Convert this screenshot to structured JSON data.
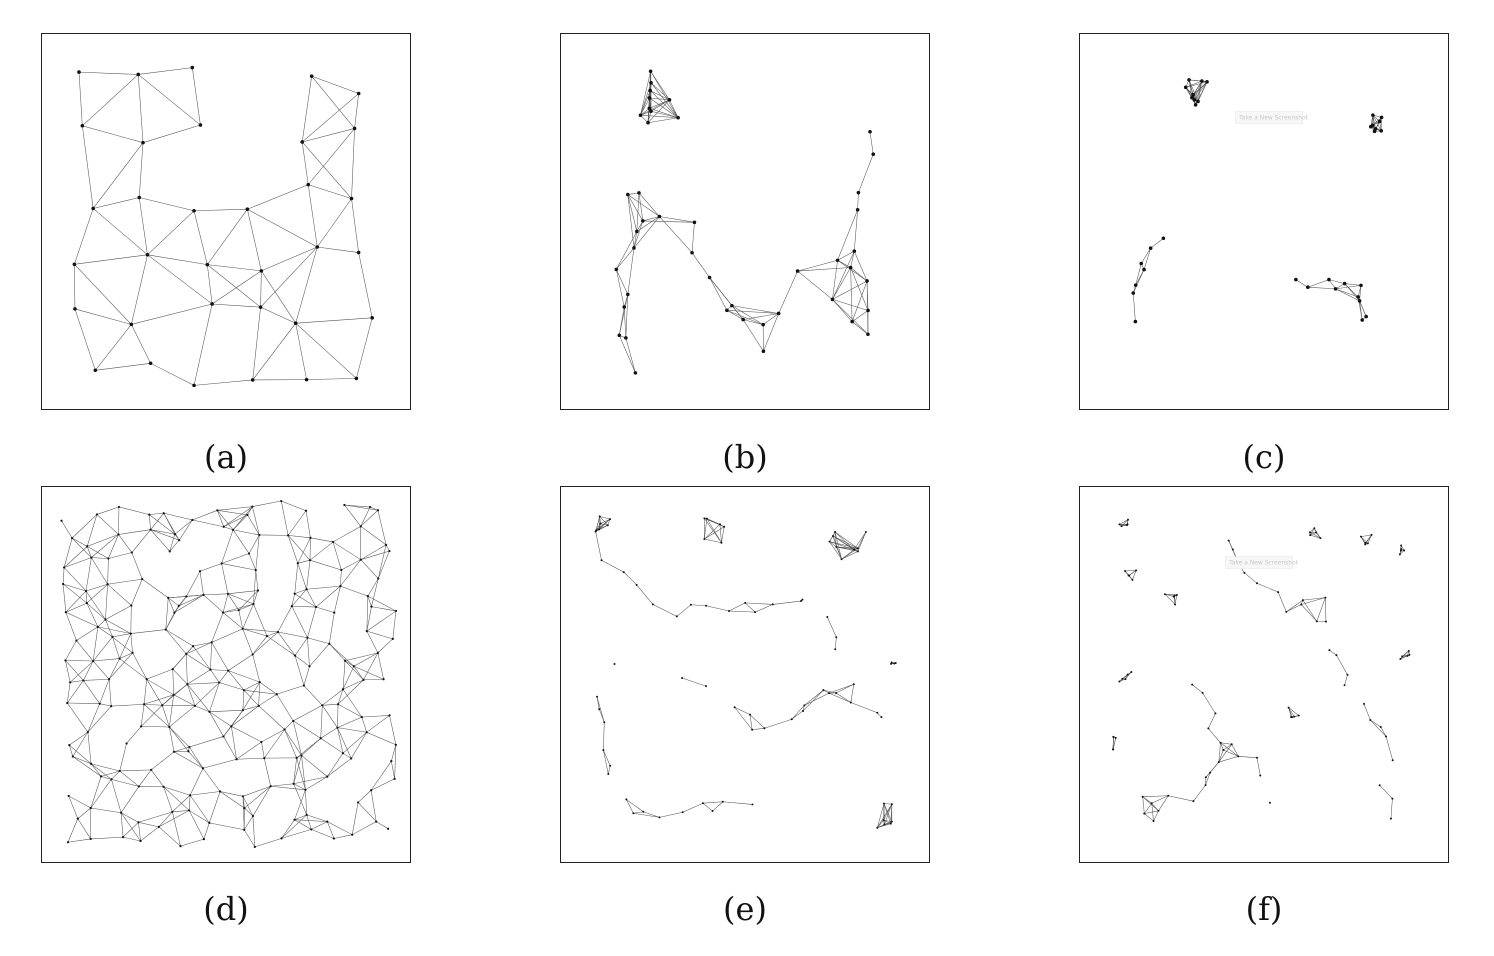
{
  "panels": [
    {
      "id": "a",
      "caption": "(a)",
      "kind": "grid-dense",
      "watermark": ""
    },
    {
      "id": "b",
      "caption": "(b)",
      "kind": "chain",
      "watermark": ""
    },
    {
      "id": "c",
      "caption": "(c)",
      "kind": "clusters",
      "watermark": "Take a New Screenshot"
    },
    {
      "id": "d",
      "caption": "(d)",
      "kind": "grid-dense",
      "watermark": ""
    },
    {
      "id": "e",
      "caption": "(e)",
      "kind": "chain",
      "watermark": ""
    },
    {
      "id": "f",
      "caption": "(f)",
      "kind": "clusters",
      "watermark": "Take a New Screenshot"
    }
  ],
  "colors": {
    "edge": "#555555",
    "node": "#111111",
    "border": "#222222"
  }
}
